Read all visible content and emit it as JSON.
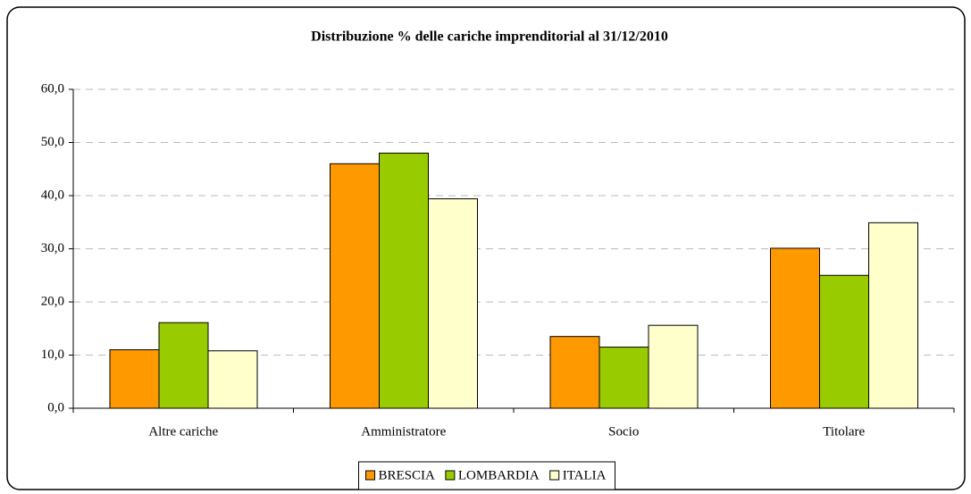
{
  "chart_data": {
    "type": "bar",
    "title": "Distribuzione % delle cariche imprenditorial al 31/12/2010",
    "categories": [
      "Altre cariche",
      "Amministratore",
      "Socio",
      "Titolare"
    ],
    "series": [
      {
        "name": "BRESCIA",
        "color": "#ff9900",
        "values": [
          11.0,
          46.0,
          13.5,
          30.1
        ]
      },
      {
        "name": "LOMBARDIA",
        "color": "#99cc00",
        "values": [
          16.1,
          48.0,
          11.5,
          25.0
        ]
      },
      {
        "name": "ITALIA",
        "color": "#ffffcc",
        "values": [
          10.8,
          39.4,
          15.6,
          34.9
        ]
      }
    ],
    "ylim": [
      0,
      60
    ],
    "yticks": [
      {
        "value": 0,
        "label": "0,0"
      },
      {
        "value": 10,
        "label": "10,0"
      },
      {
        "value": 20,
        "label": "20,0"
      },
      {
        "value": 30,
        "label": "30,0"
      },
      {
        "value": 40,
        "label": "40,0"
      },
      {
        "value": 50,
        "label": "50,0"
      },
      {
        "value": 60,
        "label": "60,0"
      }
    ],
    "grid": true,
    "legend": "bottom"
  }
}
